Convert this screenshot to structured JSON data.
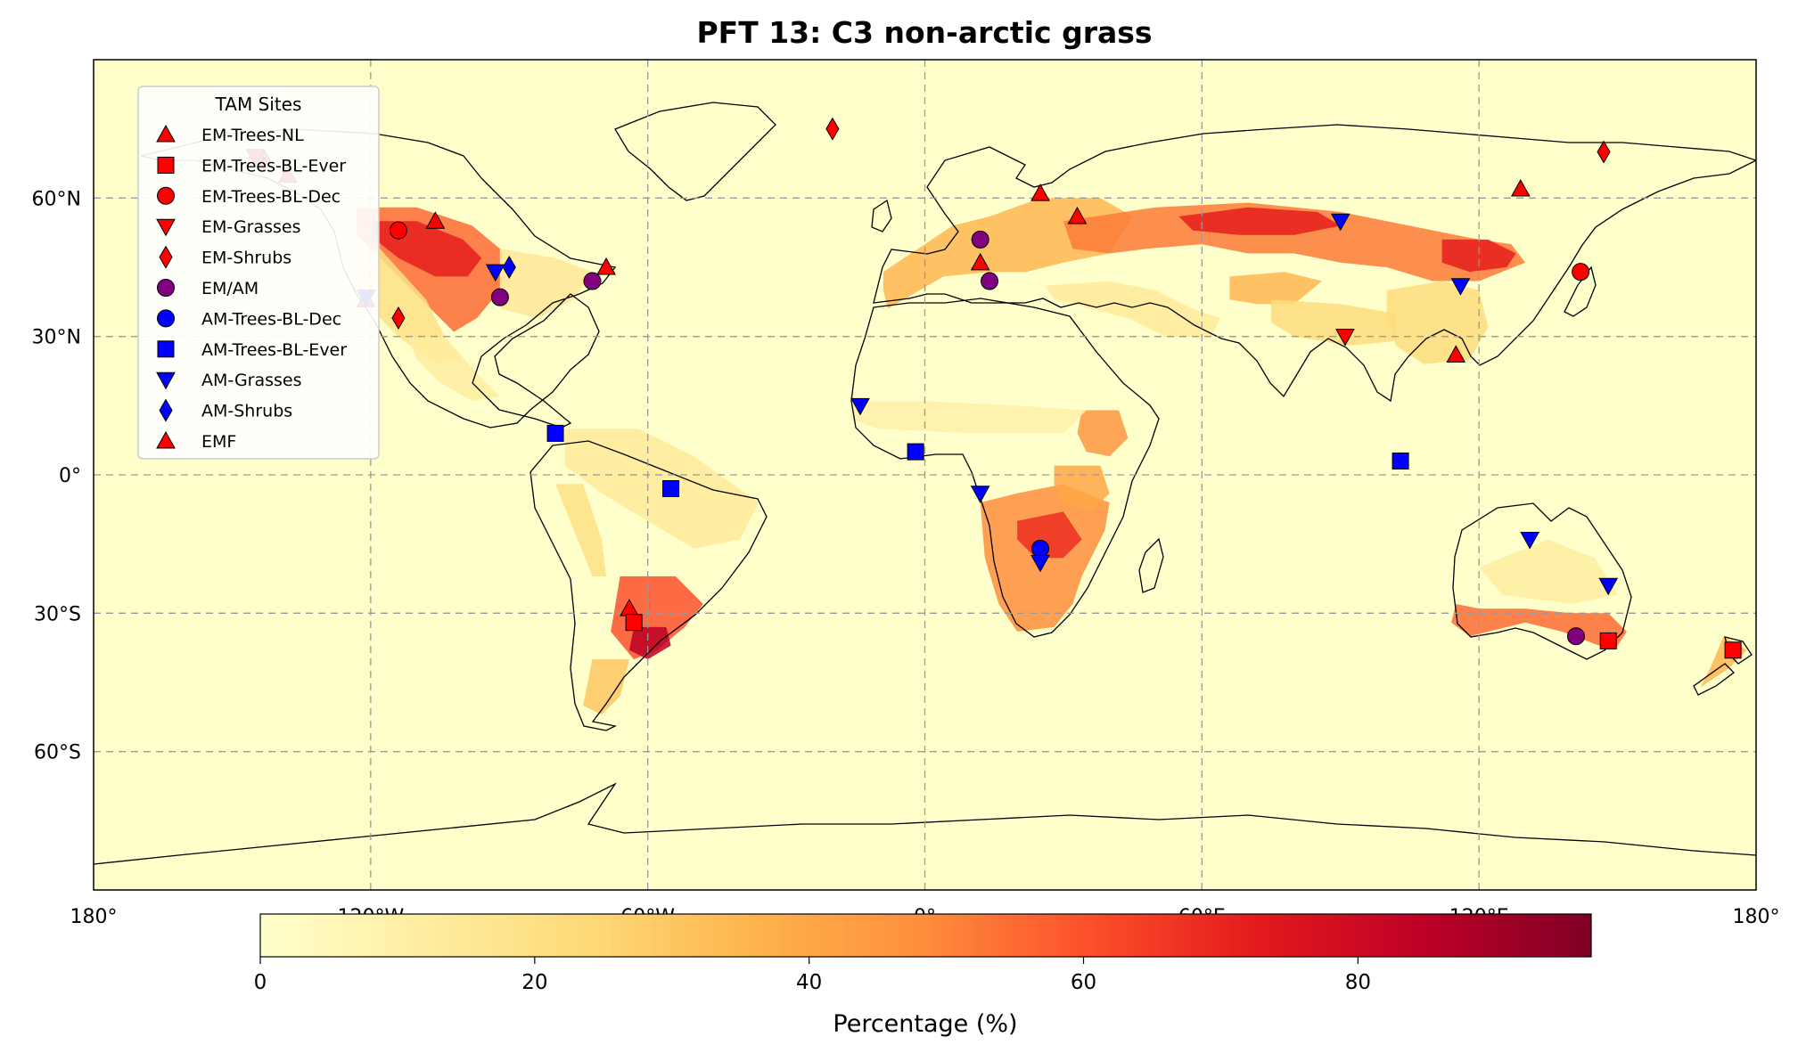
{
  "title": "PFT 13: C3 non-arctic grass",
  "map": {
    "lon_range": [
      -180,
      180
    ],
    "lat_range": [
      -90,
      90
    ],
    "ocean_color": "#ffffcc",
    "lat_tick_labels": [
      {
        "lat": 60,
        "label": "60°N"
      },
      {
        "lat": 30,
        "label": "30°N"
      },
      {
        "lat": 0,
        "label": "0°"
      },
      {
        "lat": -30,
        "label": "30°S"
      },
      {
        "lat": -60,
        "label": "60°S"
      }
    ],
    "lon_tick_labels": [
      {
        "lon": -180,
        "label": "180°"
      },
      {
        "lon": -120,
        "label": "120°W"
      },
      {
        "lon": -60,
        "label": "60°W"
      },
      {
        "lon": 0,
        "label": "0°"
      },
      {
        "lon": 60,
        "label": "60°E"
      },
      {
        "lon": 120,
        "label": "120°E"
      },
      {
        "lon": 180,
        "label": "180°"
      }
    ],
    "gridlines": true
  },
  "colorbar": {
    "label": "Percentage (%)",
    "min": 0,
    "max": 97,
    "ticks": [
      {
        "value": 0,
        "label": "0"
      },
      {
        "value": 20,
        "label": "20"
      },
      {
        "value": 40,
        "label": "40"
      },
      {
        "value": 60,
        "label": "60"
      },
      {
        "value": 80,
        "label": "80"
      }
    ],
    "colormap": [
      "#ffffcc",
      "#ffeda0",
      "#fed976",
      "#feb24c",
      "#fd8d3c",
      "#fc4e2a",
      "#e31a1c",
      "#bd0026",
      "#800026"
    ]
  },
  "legend": {
    "title": "TAM Sites",
    "placement": "upper-left",
    "entries": [
      {
        "label": "EM-Trees-NL",
        "marker": "triangle-up",
        "color": "#ff0000"
      },
      {
        "label": "EM-Trees-BL-Ever",
        "marker": "square",
        "color": "#ff0000"
      },
      {
        "label": "EM-Trees-BL-Dec",
        "marker": "circle",
        "color": "#ff0000"
      },
      {
        "label": "EM-Grasses",
        "marker": "triangle-down",
        "color": "#ff0000"
      },
      {
        "label": "EM-Shrubs",
        "marker": "diamond",
        "color": "#ff0000"
      },
      {
        "label": "EM/AM",
        "marker": "circle",
        "color": "#800080"
      },
      {
        "label": "AM-Trees-BL-Dec",
        "marker": "circle",
        "color": "#0000ff"
      },
      {
        "label": "AM-Trees-BL-Ever",
        "marker": "square",
        "color": "#0000ff"
      },
      {
        "label": "AM-Grasses",
        "marker": "triangle-down",
        "color": "#0000ff"
      },
      {
        "label": "AM-Shrubs",
        "marker": "diamond",
        "color": "#0000ff"
      },
      {
        "label": "EMF",
        "marker": "triangle-up",
        "color": "#ff0000"
      }
    ]
  },
  "sites": [
    {
      "lon": -145,
      "lat": 69,
      "marker": "triangle-down",
      "color": "#ff0000"
    },
    {
      "lon": -143,
      "lat": 68,
      "marker": "diamond",
      "color": "#ff0000"
    },
    {
      "lon": -138,
      "lat": 65,
      "marker": "triangle-up",
      "color": "#ff0000"
    },
    {
      "lon": -106,
      "lat": 55,
      "marker": "triangle-up",
      "color": "#ff0000"
    },
    {
      "lon": -114,
      "lat": 53,
      "marker": "circle",
      "color": "#ff0000"
    },
    {
      "lon": -121,
      "lat": 38,
      "marker": "triangle-up",
      "color": "#ff0000"
    },
    {
      "lon": -121,
      "lat": 38.5,
      "marker": "triangle-down",
      "color": "#0000ff"
    },
    {
      "lon": -114,
      "lat": 34,
      "marker": "diamond",
      "color": "#ff0000"
    },
    {
      "lon": -93,
      "lat": 44,
      "marker": "triangle-down",
      "color": "#0000ff"
    },
    {
      "lon": -90,
      "lat": 45,
      "marker": "diamond",
      "color": "#0000ff"
    },
    {
      "lon": -92,
      "lat": 38.5,
      "marker": "circle",
      "color": "#800080"
    },
    {
      "lon": -72,
      "lat": 42,
      "marker": "circle",
      "color": "#800080"
    },
    {
      "lon": -69,
      "lat": 45,
      "marker": "triangle-up",
      "color": "#ff0000"
    },
    {
      "lon": -80,
      "lat": 9,
      "marker": "square",
      "color": "#0000ff"
    },
    {
      "lon": -55,
      "lat": -3,
      "marker": "square",
      "color": "#0000ff"
    },
    {
      "lon": -64,
      "lat": -29,
      "marker": "triangle-up",
      "color": "#ff0000"
    },
    {
      "lon": -63,
      "lat": -32,
      "marker": "square",
      "color": "#ff0000"
    },
    {
      "lon": -20,
      "lat": 75,
      "marker": "diamond",
      "color": "#ff0000"
    },
    {
      "lon": -14,
      "lat": 15,
      "marker": "triangle-down",
      "color": "#0000ff"
    },
    {
      "lon": -2,
      "lat": 5,
      "marker": "square",
      "color": "#0000ff"
    },
    {
      "lon": 12,
      "lat": 51,
      "marker": "circle",
      "color": "#800080"
    },
    {
      "lon": 12,
      "lat": 46,
      "marker": "triangle-up",
      "color": "#ff0000"
    },
    {
      "lon": 14,
      "lat": 42,
      "marker": "circle",
      "color": "#800080"
    },
    {
      "lon": 12,
      "lat": -4,
      "marker": "triangle-down",
      "color": "#0000ff"
    },
    {
      "lon": 25,
      "lat": -16,
      "marker": "circle",
      "color": "#0000ff"
    },
    {
      "lon": 25,
      "lat": -19,
      "marker": "triangle-down",
      "color": "#0000ff"
    },
    {
      "lon": 25,
      "lat": 61,
      "marker": "triangle-up",
      "color": "#ff0000"
    },
    {
      "lon": 33,
      "lat": 56,
      "marker": "triangle-up",
      "color": "#ff0000"
    },
    {
      "lon": 90,
      "lat": 55,
      "marker": "triangle-down",
      "color": "#0000ff"
    },
    {
      "lon": 91,
      "lat": 30,
      "marker": "triangle-down",
      "color": "#ff0000"
    },
    {
      "lon": 103,
      "lat": 3,
      "marker": "square",
      "color": "#0000ff"
    },
    {
      "lon": 116,
      "lat": 41,
      "marker": "triangle-down",
      "color": "#0000ff"
    },
    {
      "lon": 115,
      "lat": 26,
      "marker": "triangle-up",
      "color": "#ff0000"
    },
    {
      "lon": 129,
      "lat": 62,
      "marker": "triangle-up",
      "color": "#ff0000"
    },
    {
      "lon": 147,
      "lat": 70,
      "marker": "diamond",
      "color": "#ff0000"
    },
    {
      "lon": 142,
      "lat": 44,
      "marker": "circle",
      "color": "#ff0000"
    },
    {
      "lon": 131,
      "lat": -14,
      "marker": "triangle-down",
      "color": "#0000ff"
    },
    {
      "lon": 148,
      "lat": -24,
      "marker": "triangle-down",
      "color": "#0000ff"
    },
    {
      "lon": 141,
      "lat": -35,
      "marker": "circle",
      "color": "#800080"
    },
    {
      "lon": 148,
      "lat": -36,
      "marker": "square",
      "color": "#ff0000"
    },
    {
      "lon": 175,
      "lat": -38,
      "marker": "square",
      "color": "#ff0000"
    }
  ],
  "grass_regions": [
    {
      "name": "north-american-prairies",
      "value": 55,
      "poly": [
        [
          -123,
          58
        ],
        [
          -110,
          58
        ],
        [
          -98,
          54
        ],
        [
          -92,
          49
        ],
        [
          -92,
          40
        ],
        [
          -97,
          34
        ],
        [
          -102,
          31
        ],
        [
          -105,
          34
        ],
        [
          -111,
          40
        ],
        [
          -117,
          46
        ],
        [
          -123,
          52
        ]
      ]
    },
    {
      "name": "north-american-prairies-core",
      "value": 72,
      "poly": [
        [
          -119,
          55
        ],
        [
          -110,
          55
        ],
        [
          -100,
          51
        ],
        [
          -96,
          47
        ],
        [
          -99,
          43
        ],
        [
          -106,
          43
        ],
        [
          -114,
          47
        ],
        [
          -119,
          51
        ]
      ]
    },
    {
      "name": "western-north-america",
      "value": 20,
      "poly": [
        [
          -124,
          49
        ],
        [
          -118,
          49
        ],
        [
          -108,
          38
        ],
        [
          -104,
          30
        ],
        [
          -100,
          25
        ],
        [
          -106,
          24
        ],
        [
          -114,
          30
        ],
        [
          -120,
          36
        ],
        [
          -124,
          42
        ]
      ]
    },
    {
      "name": "mexico",
      "value": 12,
      "poly": [
        [
          -112,
          30
        ],
        [
          -104,
          30
        ],
        [
          -97,
          22
        ],
        [
          -92,
          17
        ],
        [
          -98,
          16
        ],
        [
          -105,
          20
        ],
        [
          -110,
          25
        ]
      ]
    },
    {
      "name": "eastern-north-america",
      "value": 15,
      "poly": [
        [
          -92,
          49
        ],
        [
          -80,
          47
        ],
        [
          -72,
          44
        ],
        [
          -76,
          38
        ],
        [
          -84,
          34
        ],
        [
          -92,
          36
        ]
      ]
    },
    {
      "name": "europe",
      "value": 35,
      "poly": [
        [
          -9,
          44
        ],
        [
          0,
          50
        ],
        [
          6,
          54
        ],
        [
          14,
          56
        ],
        [
          25,
          60
        ],
        [
          38,
          60
        ],
        [
          45,
          56
        ],
        [
          40,
          48
        ],
        [
          30,
          46
        ],
        [
          22,
          44
        ],
        [
          14,
          44
        ],
        [
          4,
          43
        ],
        [
          -8,
          36
        ],
        [
          -9,
          40
        ]
      ]
    },
    {
      "name": "eurasian-steppe",
      "value": 52,
      "poly": [
        [
          30,
          55
        ],
        [
          50,
          58
        ],
        [
          70,
          59
        ],
        [
          90,
          57
        ],
        [
          100,
          55
        ],
        [
          110,
          53
        ],
        [
          120,
          51
        ],
        [
          127,
          50
        ],
        [
          130,
          46
        ],
        [
          120,
          42
        ],
        [
          110,
          42
        ],
        [
          100,
          45
        ],
        [
          90,
          46
        ],
        [
          80,
          48
        ],
        [
          70,
          48
        ],
        [
          60,
          50
        ],
        [
          48,
          49
        ],
        [
          40,
          48
        ],
        [
          32,
          49
        ]
      ]
    },
    {
      "name": "eurasian-steppe-core",
      "value": 72,
      "poly": [
        [
          55,
          56
        ],
        [
          70,
          58
        ],
        [
          85,
          57
        ],
        [
          90,
          54
        ],
        [
          80,
          52
        ],
        [
          68,
          52
        ],
        [
          58,
          53
        ]
      ]
    },
    {
      "name": "manchuria",
      "value": 72,
      "poly": [
        [
          112,
          51
        ],
        [
          122,
          51
        ],
        [
          128,
          48
        ],
        [
          126,
          45
        ],
        [
          118,
          44
        ],
        [
          112,
          46
        ]
      ]
    },
    {
      "name": "central-asia-mountains",
      "value": 35,
      "poly": [
        [
          66,
          43
        ],
        [
          78,
          44
        ],
        [
          86,
          42
        ],
        [
          80,
          37
        ],
        [
          72,
          37
        ],
        [
          66,
          38
        ]
      ]
    },
    {
      "name": "tibet",
      "value": 22,
      "poly": [
        [
          75,
          38
        ],
        [
          90,
          37
        ],
        [
          102,
          35
        ],
        [
          102,
          29
        ],
        [
          92,
          28
        ],
        [
          80,
          30
        ],
        [
          75,
          33
        ]
      ]
    },
    {
      "name": "china",
      "value": 22,
      "poly": [
        [
          100,
          40
        ],
        [
          112,
          42
        ],
        [
          120,
          40
        ],
        [
          122,
          32
        ],
        [
          118,
          25
        ],
        [
          108,
          24
        ],
        [
          102,
          28
        ],
        [
          100,
          34
        ]
      ]
    },
    {
      "name": "middle-east",
      "value": 14,
      "poly": [
        [
          26,
          41
        ],
        [
          40,
          42
        ],
        [
          50,
          40
        ],
        [
          58,
          36
        ],
        [
          64,
          34
        ],
        [
          62,
          30
        ],
        [
          52,
          30
        ],
        [
          44,
          34
        ],
        [
          36,
          36
        ],
        [
          28,
          38
        ]
      ]
    },
    {
      "name": "ethiopia",
      "value": 45,
      "poly": [
        [
          34,
          14
        ],
        [
          42,
          14
        ],
        [
          44,
          8
        ],
        [
          40,
          4
        ],
        [
          35,
          5
        ],
        [
          33,
          9
        ]
      ]
    },
    {
      "name": "sahel",
      "value": 10,
      "poly": [
        [
          -16,
          16
        ],
        [
          0,
          16
        ],
        [
          20,
          15
        ],
        [
          35,
          14
        ],
        [
          30,
          9
        ],
        [
          10,
          9
        ],
        [
          -10,
          10
        ],
        [
          -16,
          12
        ]
      ]
    },
    {
      "name": "southern-africa",
      "value": 48,
      "poly": [
        [
          12,
          -6
        ],
        [
          20,
          -4
        ],
        [
          30,
          -2
        ],
        [
          40,
          -6
        ],
        [
          39,
          -12
        ],
        [
          34,
          -22
        ],
        [
          32,
          -28
        ],
        [
          28,
          -33
        ],
        [
          20,
          -34
        ],
        [
          16,
          -28
        ],
        [
          13,
          -18
        ]
      ]
    },
    {
      "name": "southern-africa-core",
      "value": 68,
      "poly": [
        [
          20,
          -10
        ],
        [
          30,
          -8
        ],
        [
          34,
          -14
        ],
        [
          30,
          -18
        ],
        [
          24,
          -18
        ],
        [
          20,
          -14
        ]
      ]
    },
    {
      "name": "east-africa",
      "value": 40,
      "poly": [
        [
          28,
          2
        ],
        [
          38,
          2
        ],
        [
          40,
          -4
        ],
        [
          36,
          -8
        ],
        [
          30,
          -6
        ],
        [
          28,
          -2
        ]
      ]
    },
    {
      "name": "south-america-north",
      "value": 14,
      "poly": [
        [
          -78,
          10
        ],
        [
          -62,
          10
        ],
        [
          -50,
          4
        ],
        [
          -36,
          -6
        ],
        [
          -40,
          -14
        ],
        [
          -50,
          -16
        ],
        [
          -60,
          -10
        ],
        [
          -70,
          -4
        ],
        [
          -78,
          2
        ]
      ]
    },
    {
      "name": "pampas",
      "value": 60,
      "poly": [
        [
          -66,
          -22
        ],
        [
          -54,
          -22
        ],
        [
          -48,
          -28
        ],
        [
          -52,
          -33
        ],
        [
          -58,
          -38
        ],
        [
          -63,
          -40
        ],
        [
          -68,
          -34
        ],
        [
          -67,
          -28
        ]
      ]
    },
    {
      "name": "pampas-core",
      "value": 85,
      "poly": [
        [
          -63,
          -33
        ],
        [
          -56,
          -33
        ],
        [
          -55,
          -37
        ],
        [
          -60,
          -40
        ],
        [
          -64,
          -38
        ]
      ]
    },
    {
      "name": "patagonia",
      "value": 30,
      "poly": [
        [
          -72,
          -40
        ],
        [
          -64,
          -40
        ],
        [
          -66,
          -48
        ],
        [
          -70,
          -52
        ],
        [
          -74,
          -50
        ]
      ]
    },
    {
      "name": "andes",
      "value": 20,
      "poly": [
        [
          -80,
          -2
        ],
        [
          -74,
          -2
        ],
        [
          -70,
          -14
        ],
        [
          -69,
          -22
        ],
        [
          -72,
          -22
        ],
        [
          -76,
          -12
        ]
      ]
    },
    {
      "name": "southern-australia",
      "value": 55,
      "poly": [
        [
          114,
          -32
        ],
        [
          118,
          -35
        ],
        [
          130,
          -32
        ],
        [
          138,
          -34
        ],
        [
          146,
          -37
        ],
        [
          150,
          -37
        ],
        [
          152,
          -34
        ],
        [
          148,
          -30
        ],
        [
          140,
          -30
        ],
        [
          130,
          -29
        ],
        [
          120,
          -29
        ],
        [
          115,
          -28
        ]
      ]
    },
    {
      "name": "australia-interior",
      "value": 12,
      "poly": [
        [
          120,
          -20
        ],
        [
          135,
          -14
        ],
        [
          145,
          -18
        ],
        [
          150,
          -26
        ],
        [
          140,
          -28
        ],
        [
          125,
          -26
        ]
      ]
    },
    {
      "name": "new-zealand",
      "value": 35,
      "poly": [
        [
          168,
          -46
        ],
        [
          174,
          -42
        ],
        [
          178,
          -38
        ],
        [
          173,
          -35
        ],
        [
          170,
          -42
        ]
      ]
    }
  ]
}
